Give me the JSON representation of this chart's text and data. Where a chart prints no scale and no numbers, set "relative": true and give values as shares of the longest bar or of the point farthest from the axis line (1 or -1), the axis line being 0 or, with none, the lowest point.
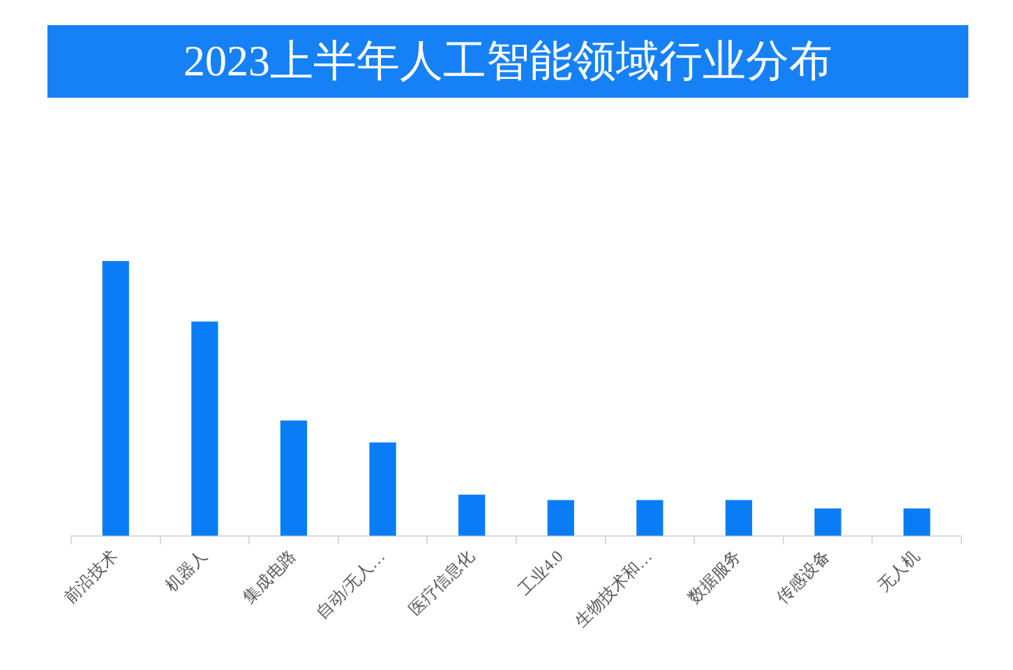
{
  "chart_data": {
    "type": "bar",
    "title": "2023上半年人工智能领域行业分布",
    "categories": [
      "前沿技术",
      "机器人",
      "集成电路",
      "自动/无人…",
      "医疗信息化",
      "工业4.0",
      "生物技术和…",
      "数据服务",
      "传感设备",
      "无人机"
    ],
    "values": [
      1,
      0.78,
      0.42,
      0.34,
      0.15,
      0.13,
      0.13,
      0.13,
      0.1,
      0.1
    ],
    "color": "#0a7df6",
    "relative": true,
    "grid": false,
    "legend": false
  }
}
